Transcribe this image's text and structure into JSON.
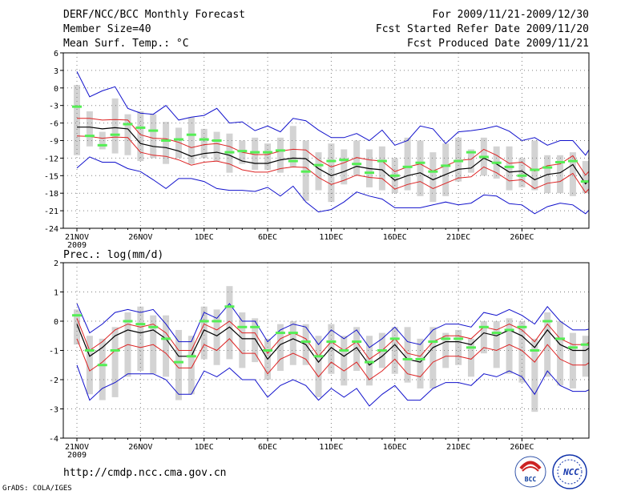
{
  "header": {
    "title": "DERF/NCC/BCC Monthly Forecast",
    "member_size": "Member Size=40",
    "variable": "Mean Surf. Temp.: °C",
    "period": "For 2009/11/21-2009/12/30",
    "started": "Fcst Started Refer Date 2009/11/20",
    "produced": "Fcst Produced Date 2009/11/21"
  },
  "footer": {
    "url": "http://cmdp.ncc.cma.gov.cn",
    "grads": "GrADS: COLA/IGES",
    "logo1_text": "BCC",
    "logo2_text": "NCC"
  },
  "colors": {
    "box": "#d3d3d3",
    "median": "#55ee55",
    "ensemble_mean": "#000000",
    "spread": "#dd2222",
    "extreme": "#1111cc",
    "grid": "#808080"
  },
  "chart_data": [
    {
      "type": "line",
      "title": "Mean Surf. Temp.: °C",
      "ylim": [
        -24,
        6
      ],
      "yticks": [
        -24,
        -21,
        -18,
        -15,
        -12,
        -9,
        -6,
        -3,
        0,
        3,
        6
      ],
      "xlabel_ticks": [
        {
          "day": 1,
          "label": "21NOV",
          "sublabel": "2009"
        },
        {
          "day": 6,
          "label": "26NOV"
        },
        {
          "day": 11,
          "label": "1DEC"
        },
        {
          "day": 16,
          "label": "6DEC"
        },
        {
          "day": 21,
          "label": "11DEC"
        },
        {
          "day": 26,
          "label": "16DEC"
        },
        {
          "day": 31,
          "label": "21DEC"
        },
        {
          "day": 36,
          "label": "26DEC"
        }
      ],
      "series": [
        {
          "name": "ensemble mean",
          "values": [
            -6.7,
            -6.7,
            -7.0,
            -6.8,
            -7.0,
            -9.5,
            -10.0,
            -10.2,
            -10.8,
            -11.7,
            -11.2,
            -11.0,
            -11.5,
            -12.5,
            -12.9,
            -12.9,
            -12.3,
            -12.0,
            -12.1,
            -13.8,
            -15.0,
            -14.3,
            -13.4,
            -13.8,
            -14.0,
            -15.8,
            -15.0,
            -14.5,
            -15.7,
            -14.8,
            -13.9,
            -13.7,
            -12.0,
            -13.0,
            -14.4,
            -14.2,
            -15.7,
            -14.8,
            -14.5,
            -13.1,
            -16.4,
            -14.0,
            -14.0
          ]
        },
        {
          "name": "upper spread",
          "values": [
            -5.2,
            -5.2,
            -5.5,
            -5.4,
            -5.5,
            -8.0,
            -8.6,
            -8.7,
            -9.3,
            -10.2,
            -9.7,
            -9.5,
            -10.0,
            -11.0,
            -11.4,
            -11.4,
            -10.8,
            -10.5,
            -10.6,
            -12.3,
            -13.5,
            -12.8,
            -11.9,
            -12.3,
            -12.5,
            -14.3,
            -13.5,
            -13.0,
            -14.2,
            -13.3,
            -12.4,
            -12.2,
            -10.5,
            -11.5,
            -12.9,
            -12.7,
            -14.2,
            -13.3,
            -13.0,
            -11.6,
            -14.9,
            -12.5,
            -12.5
          ]
        },
        {
          "name": "lower spread",
          "values": [
            -8.2,
            -8.3,
            -8.6,
            -8.4,
            -8.5,
            -11.0,
            -11.5,
            -11.7,
            -12.3,
            -13.2,
            -12.7,
            -12.5,
            -13.0,
            -14.0,
            -14.4,
            -14.4,
            -13.8,
            -13.5,
            -13.6,
            -15.3,
            -16.5,
            -15.8,
            -14.9,
            -15.3,
            -15.5,
            -17.3,
            -16.5,
            -16.0,
            -17.2,
            -16.3,
            -15.4,
            -15.2,
            -13.5,
            -14.5,
            -15.9,
            -15.7,
            -17.2,
            -16.3,
            -16.0,
            -14.6,
            -17.9,
            -15.5,
            -15.4
          ]
        },
        {
          "name": "maximum",
          "values": [
            2.8,
            -1.5,
            -0.5,
            0.2,
            -3.5,
            -4.3,
            -4.5,
            -3.0,
            -5.5,
            -5.0,
            -4.7,
            -3.5,
            -6.0,
            -5.8,
            -7.3,
            -6.5,
            -7.5,
            -5.2,
            -5.6,
            -7.2,
            -8.5,
            -8.5,
            -7.8,
            -9.0,
            -7.2,
            -9.8,
            -9.0,
            -6.5,
            -7.0,
            -9.5,
            -7.5,
            -7.3,
            -7.0,
            -6.5,
            -7.4,
            -9.0,
            -8.5,
            -9.8,
            -9.0,
            -9.0,
            -11.5,
            -8.0,
            -8.6
          ]
        },
        {
          "name": "minimum",
          "values": [
            -13.7,
            -11.8,
            -12.7,
            -12.7,
            -13.8,
            -14.3,
            -15.7,
            -17.2,
            -15.5,
            -15.5,
            -16.0,
            -17.2,
            -17.5,
            -17.5,
            -17.7,
            -17.0,
            -18.5,
            -16.8,
            -19.5,
            -21.2,
            -20.8,
            -19.5,
            -17.8,
            -18.5,
            -19.0,
            -20.5,
            -20.5,
            -20.5,
            -20.0,
            -19.5,
            -20.0,
            -19.7,
            -18.3,
            -18.5,
            -19.8,
            -20.0,
            -21.5,
            -20.3,
            -19.7,
            -20.0,
            -21.5,
            -19.2,
            -19.0
          ]
        },
        {
          "name": "median",
          "values": [
            -3.2,
            -8.2,
            -9.8,
            -8.0,
            -6.2,
            -6.8,
            -7.3,
            -9.0,
            -8.8,
            -8.0,
            -8.8,
            -9.0,
            -11.0,
            -10.8,
            -11.0,
            -11.0,
            -10.7,
            -12.5,
            -14.3,
            -13.2,
            -12.5,
            -12.3,
            -13.0,
            -14.5,
            -12.5,
            -15.0,
            -13.5,
            -12.8,
            -14.3,
            -13.3,
            -12.5,
            -11.0,
            -11.8,
            -12.8,
            -13.5,
            -15.0,
            -14.0,
            -13.6,
            -12.7,
            -12.5,
            -16.0,
            -12.7,
            -13.0
          ]
        },
        {
          "name": "box top",
          "values": [
            0.5,
            -4.0,
            -7.5,
            -1.8,
            -4.5,
            -4.0,
            -4.5,
            -5.8,
            -6.8,
            -5.0,
            -7.0,
            -7.5,
            -7.8,
            -9.0,
            -8.5,
            -9.5,
            -8.5,
            -6.5,
            -9.0,
            -11.0,
            -9.5,
            -10.5,
            -9.0,
            -10.5,
            -10.0,
            -12.0,
            -8.5,
            -9.0,
            -11.0,
            -9.5,
            -8.5,
            -10.5,
            -8.5,
            -10.0,
            -10.0,
            -12.0,
            -9.0,
            -11.5,
            -11.5,
            -11.0,
            -12.5,
            -11.0,
            -10.0
          ]
        },
        {
          "name": "box bottom",
          "values": [
            -11.5,
            -10.0,
            -10.5,
            -11.2,
            -11.5,
            -12.5,
            -12.0,
            -13.0,
            -12.0,
            -13.0,
            -12.0,
            -12.5,
            -14.5,
            -13.0,
            -14.0,
            -14.0,
            -14.5,
            -13.5,
            -19.3,
            -17.5,
            -19.5,
            -16.5,
            -15.0,
            -17.0,
            -17.5,
            -18.0,
            -17.5,
            -18.5,
            -19.5,
            -18.5,
            -16.0,
            -14.5,
            -15.0,
            -15.5,
            -17.5,
            -17.0,
            -17.5,
            -18.0,
            -18.0,
            -18.5,
            -18.0,
            -16.5,
            -18.0
          ]
        }
      ]
    },
    {
      "type": "line",
      "title": "Prec.: log(mm/d)",
      "ylim": [
        -4,
        2
      ],
      "yticks": [
        -4,
        -3,
        -2,
        -1,
        0,
        1,
        2
      ],
      "xlabel_ticks": [
        {
          "day": 1,
          "label": "21NOV",
          "sublabel": "2009"
        },
        {
          "day": 6,
          "label": "26NOV"
        },
        {
          "day": 11,
          "label": "1DEC"
        },
        {
          "day": 16,
          "label": "6DEC"
        },
        {
          "day": 21,
          "label": "11DEC"
        },
        {
          "day": 26,
          "label": "16DEC"
        },
        {
          "day": 31,
          "label": "21DEC"
        },
        {
          "day": 36,
          "label": "26DEC"
        }
      ],
      "series": [
        {
          "name": "ensemble mean",
          "values": [
            -0.1,
            -1.2,
            -0.9,
            -0.5,
            -0.3,
            -0.4,
            -0.3,
            -0.6,
            -1.2,
            -1.2,
            -0.3,
            -0.5,
            -0.2,
            -0.6,
            -0.6,
            -1.3,
            -0.8,
            -0.6,
            -0.8,
            -1.4,
            -0.9,
            -1.2,
            -0.9,
            -1.5,
            -1.2,
            -0.8,
            -1.3,
            -1.4,
            -0.9,
            -0.7,
            -0.7,
            -0.8,
            -0.4,
            -0.5,
            -0.3,
            -0.5,
            -0.9,
            -0.3,
            -0.8,
            -1.0,
            -1.0,
            -0.7,
            -0.5
          ]
        },
        {
          "name": "upper spread",
          "values": [
            0.1,
            -1.0,
            -0.7,
            -0.3,
            -0.1,
            -0.2,
            -0.1,
            -0.4,
            -1.0,
            -1.0,
            -0.1,
            -0.3,
            0.0,
            -0.4,
            -0.4,
            -1.1,
            -0.6,
            -0.4,
            -0.6,
            -1.2,
            -0.7,
            -1.0,
            -0.7,
            -1.3,
            -1.0,
            -0.6,
            -1.1,
            -1.2,
            -0.7,
            -0.5,
            -0.5,
            -0.6,
            -0.2,
            -0.3,
            -0.1,
            -0.3,
            -0.7,
            -0.1,
            -0.6,
            -0.8,
            -0.8,
            -0.5,
            -0.3
          ]
        },
        {
          "name": "lower spread",
          "values": [
            -0.6,
            -1.7,
            -1.4,
            -1.0,
            -0.8,
            -0.9,
            -0.8,
            -1.1,
            -1.6,
            -1.6,
            -0.8,
            -1.0,
            -0.6,
            -1.1,
            -1.1,
            -1.8,
            -1.3,
            -1.1,
            -1.3,
            -1.9,
            -1.4,
            -1.7,
            -1.4,
            -2.0,
            -1.7,
            -1.3,
            -1.8,
            -1.9,
            -1.4,
            -1.2,
            -1.2,
            -1.3,
            -0.9,
            -1.0,
            -0.8,
            -1.0,
            -1.4,
            -0.8,
            -1.3,
            -1.5,
            -1.5,
            -1.2,
            -1.0
          ]
        },
        {
          "name": "maximum",
          "values": [
            0.6,
            -0.4,
            -0.1,
            0.3,
            0.4,
            0.3,
            0.4,
            -0.1,
            -0.7,
            -0.7,
            0.3,
            0.1,
            0.6,
            0.0,
            0.0,
            -0.7,
            -0.3,
            -0.1,
            -0.2,
            -0.8,
            -0.3,
            -0.6,
            -0.3,
            -0.9,
            -0.6,
            -0.2,
            -0.7,
            -0.8,
            -0.3,
            -0.1,
            -0.1,
            -0.2,
            0.3,
            0.2,
            0.4,
            0.2,
            -0.1,
            0.5,
            0.0,
            -0.3,
            -0.3,
            -0.2,
            0.3
          ]
        },
        {
          "name": "minimum",
          "values": [
            -1.5,
            -2.7,
            -2.3,
            -2.1,
            -1.8,
            -1.8,
            -1.8,
            -2.0,
            -2.5,
            -2.5,
            -1.7,
            -1.9,
            -1.6,
            -2.0,
            -2.0,
            -2.6,
            -2.2,
            -2.0,
            -2.2,
            -2.7,
            -2.3,
            -2.6,
            -2.3,
            -2.9,
            -2.5,
            -2.2,
            -2.7,
            -2.7,
            -2.3,
            -2.1,
            -2.1,
            -2.2,
            -1.8,
            -1.9,
            -1.7,
            -1.9,
            -2.5,
            -1.7,
            -2.2,
            -2.4,
            -2.4,
            -2.2,
            -1.9
          ]
        },
        {
          "name": "median",
          "values": [
            0.2,
            -1.0,
            -1.5,
            -1.0,
            0.0,
            -0.1,
            -0.2,
            -0.6,
            -1.4,
            -1.2,
            0.0,
            0.0,
            0.5,
            -0.2,
            -0.2,
            -1.0,
            -0.4,
            -0.4,
            -0.7,
            -1.2,
            -0.7,
            -1.0,
            -0.7,
            -1.4,
            -1.0,
            -0.6,
            -1.3,
            -1.3,
            -0.7,
            -0.6,
            -0.6,
            -0.9,
            -0.2,
            -0.4,
            -0.3,
            -0.2,
            -1.0,
            0.0,
            -0.6,
            -0.9,
            -0.8,
            -0.6,
            -0.3
          ]
        },
        {
          "name": "box top",
          "values": [
            0.4,
            -0.5,
            -0.6,
            -0.2,
            0.3,
            0.5,
            0.2,
            0.2,
            -0.3,
            -0.5,
            0.5,
            0.4,
            1.2,
            0.3,
            0.1,
            -0.6,
            -0.1,
            0.0,
            -0.1,
            -0.5,
            -0.1,
            -0.5,
            -0.2,
            -0.5,
            -0.4,
            -0.2,
            -0.2,
            -0.6,
            -0.2,
            -0.4,
            -0.3,
            -0.6,
            0.0,
            0.0,
            0.1,
            0.0,
            -0.6,
            0.3,
            0.0,
            -0.4,
            -0.5,
            -0.5,
            0.2
          ]
        },
        {
          "name": "box bottom",
          "values": [
            -0.8,
            -2.5,
            -2.7,
            -2.6,
            -1.9,
            -1.7,
            -1.8,
            -1.9,
            -2.7,
            -2.5,
            -1.3,
            -1.5,
            -1.3,
            -1.6,
            -1.4,
            -2.0,
            -1.7,
            -1.5,
            -1.5,
            -2.6,
            -1.8,
            -2.2,
            -1.7,
            -2.2,
            -1.6,
            -1.8,
            -2.1,
            -2.3,
            -2.3,
            -1.6,
            -1.5,
            -1.9,
            -1.1,
            -1.6,
            -1.8,
            -2.1,
            -3.1,
            -1.9,
            -2.2,
            -2.3,
            -1.9,
            -1.2,
            -1.1
          ]
        }
      ]
    }
  ]
}
